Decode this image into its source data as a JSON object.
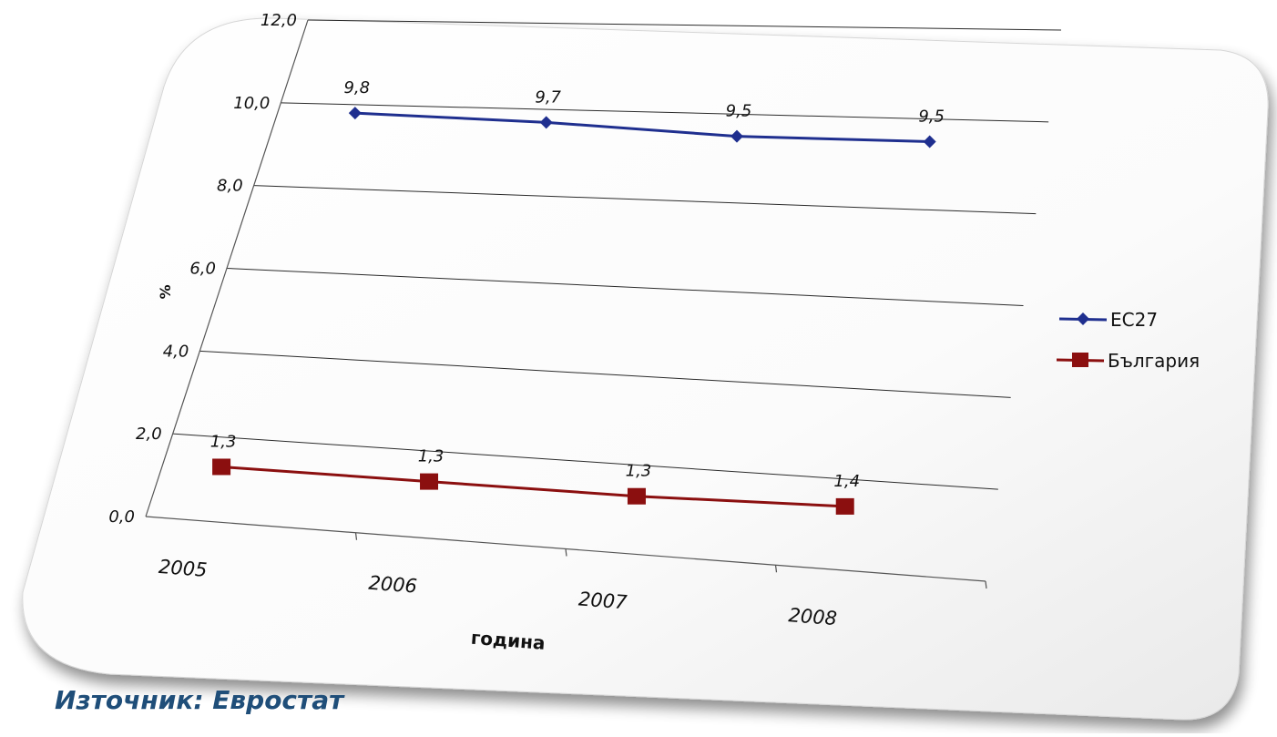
{
  "chart_data": {
    "type": "line",
    "categories": [
      "2005",
      "2006",
      "2007",
      "2008"
    ],
    "series": [
      {
        "name": "ЕС27",
        "values": [
          9.8,
          9.7,
          9.5,
          9.5
        ],
        "labels": [
          "9,8",
          "9,7",
          "9,5",
          "9,5"
        ],
        "color": "#1f2f8f",
        "marker": "diamond"
      },
      {
        "name": "България",
        "values": [
          1.3,
          1.3,
          1.3,
          1.4
        ],
        "labels": [
          "1,3",
          "1,3",
          "1,3",
          "1,4"
        ],
        "color": "#8b0f0f",
        "marker": "square"
      }
    ],
    "xlabel": "година",
    "ylabel": "%",
    "ylim": [
      0,
      12
    ],
    "yticks": [
      "0,0",
      "2,0",
      "4,0",
      "6,0",
      "8,0",
      "10,0",
      "12,0"
    ],
    "grid": true,
    "legend": "right"
  },
  "source": "Източник: Евростат"
}
